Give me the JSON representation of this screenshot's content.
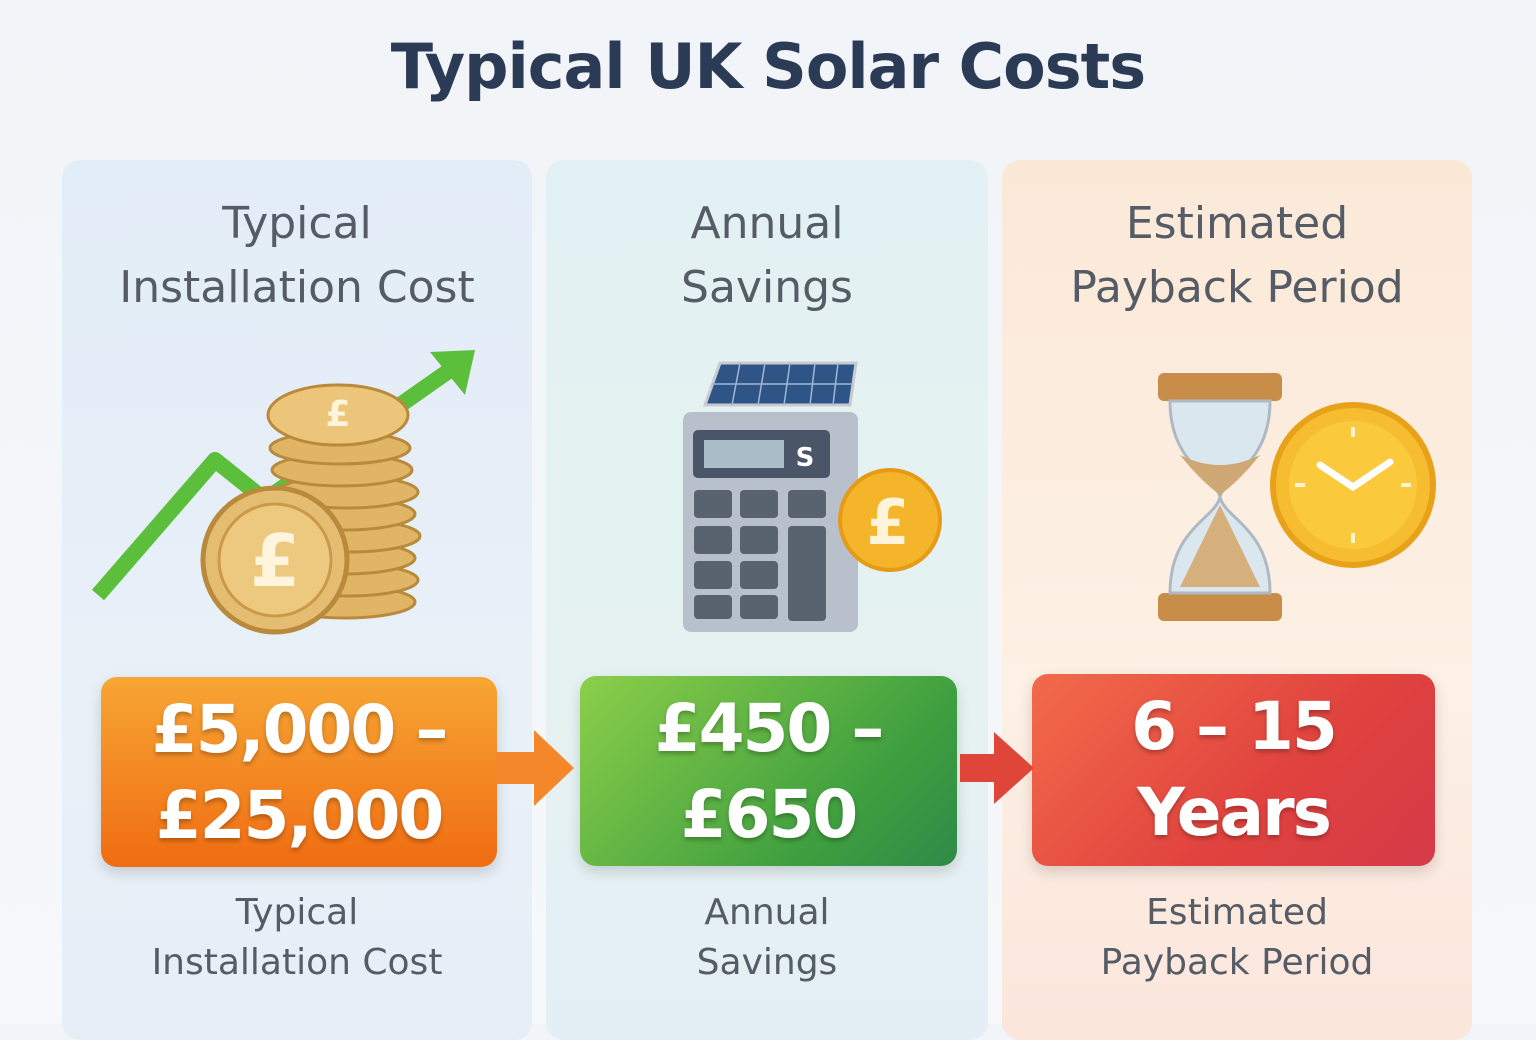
{
  "title": "Typical UK Solar Costs",
  "panels": [
    {
      "heading": [
        "Typical",
        "Installation Cost"
      ],
      "value": [
        "£5,000 –",
        "£25,000"
      ],
      "caption": [
        "Typical",
        "Installation Cost"
      ],
      "color": "#f07a1c",
      "icon": "pound-coins-rising-arrow-icon"
    },
    {
      "heading": [
        "Annual",
        "Savings"
      ],
      "value": [
        "£450 –",
        "£650"
      ],
      "caption": [
        "Annual",
        "Savings"
      ],
      "color": "#4aa844",
      "icon": "solar-calculator-icon"
    },
    {
      "heading": [
        "Estimated",
        "Payback Period"
      ],
      "value": [
        "6 – 15",
        "Years"
      ],
      "caption": [
        "Estimated",
        "Payback Period"
      ],
      "color": "#e14a40",
      "icon": "hourglass-clock-icon"
    }
  ]
}
